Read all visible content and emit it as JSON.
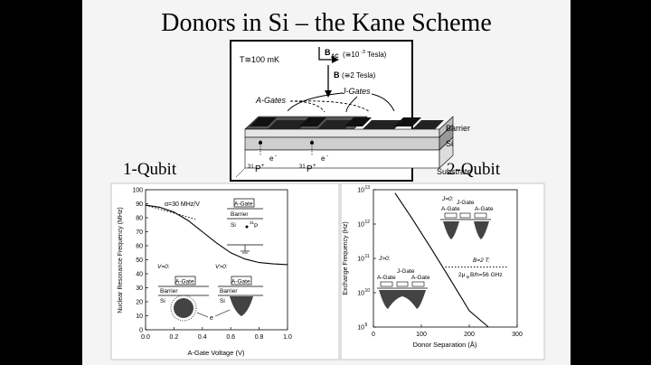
{
  "slide": {
    "title": "Donors in Si – the Kane Scheme",
    "left_label": "1-Qubit",
    "right_label": "2-Qubit"
  },
  "diagram": {
    "temperature": "T≅100 mK",
    "bac_label": "B",
    "bac_sub": "AC",
    "bac_value": "(≅10",
    "bac_exp": "-3",
    "bac_unit": " Tesla)",
    "b_label": "B",
    "b_value": "(≅2 Tesla)",
    "j_gates": "J-Gates",
    "a_gates": "A-Gates",
    "barrier": "Barrier",
    "si": "Si",
    "substrate": "Substrate",
    "electron_1": "e",
    "electron_2": "e",
    "electron_sup": "-",
    "p_1": "P",
    "p_2": "P",
    "p_sup_pre": "31",
    "p_sup_post": "+"
  },
  "chart_left": {
    "type": "line",
    "ylabel": "Nuclear Resonance Frequency (MHz)",
    "xlabel": "A-Gate Voltage (V)",
    "xlim": [
      0.0,
      1.0
    ],
    "ylim": [
      0,
      100
    ],
    "xticks": [
      "0.0",
      "0.2",
      "0.4",
      "0.6",
      "0.8",
      "1.0"
    ],
    "yticks": [
      "0",
      "10",
      "20",
      "30",
      "40",
      "50",
      "60",
      "70",
      "80",
      "90",
      "100"
    ],
    "annotation": "α=30 MHz/V",
    "inset_top": {
      "gate": "A-Gate",
      "barrier": "Barrier",
      "si": "Si",
      "p": "P",
      "p_sup": "31"
    },
    "inset_v0": {
      "label": "V=0:",
      "gate": "A-Gate",
      "barrier": "Barrier",
      "si": "Si"
    },
    "inset_vpos": {
      "label": "V>0:",
      "gate": "A-Gate",
      "barrier": "Barrier",
      "si": "Si"
    },
    "electron": "e"
  },
  "chart_right": {
    "type": "line",
    "ylabel": "Exchange Frequency (Hz)",
    "xlabel": "Donor Separation (Å)",
    "xlim": [
      0,
      300
    ],
    "yticks": [
      {
        "base": "10",
        "exp": "9"
      },
      {
        "base": "10",
        "exp": "10"
      },
      {
        "base": "10",
        "exp": "11"
      },
      {
        "base": "10",
        "exp": "12"
      },
      {
        "base": "10",
        "exp": "13"
      }
    ],
    "xticks": [
      "0",
      "100",
      "200",
      "300"
    ],
    "inset_j0": {
      "label": "J=0:",
      "jgate": "J-Gate",
      "agate1": "A-Gate",
      "agate2": "A-Gate"
    },
    "inset_jpos": {
      "label": "J>0:",
      "jgate": "J-Gate",
      "agate1": "A-Gate",
      "agate2": "A-Gate"
    },
    "b_annotation": "B=2 T:",
    "freq_annotation": "2μ",
    "freq_sub": "B",
    "freq_rest": "B/h=56 GHz"
  },
  "chart_data": [
    {
      "type": "line",
      "title": "1-Qubit",
      "xlabel": "A-Gate Voltage (V)",
      "ylabel": "Nuclear Resonance Frequency (MHz)",
      "xlim": [
        0.0,
        1.0
      ],
      "ylim": [
        0,
        100
      ],
      "series": [
        {
          "x": [
            0.0,
            0.1,
            0.2,
            0.3,
            0.4,
            0.5,
            0.6,
            0.7,
            0.8,
            0.9,
            1.0
          ],
          "y": [
            89,
            87.5,
            84,
            78,
            70,
            62,
            55,
            50.5,
            48,
            47,
            46.5
          ]
        }
      ],
      "dotted_line": {
        "x": [
          0.0,
          0.35
        ],
        "y": [
          89,
          79
        ]
      }
    },
    {
      "type": "line",
      "title": "2-Qubit",
      "xlabel": "Donor Separation (Å)",
      "ylabel": "Exchange Frequency (Hz)",
      "xlim": [
        0,
        300
      ],
      "ylim": [
        1000000000.0,
        10000000000000.0
      ],
      "yscale": "log",
      "series": [
        {
          "x": [
            45,
            80,
            120,
            160,
            200,
            240
          ],
          "y": [
            8000000000000.0,
            1500000000000.0,
            200000000000.0,
            25000000000.0,
            3000000000.0,
            1000000000.0
          ]
        }
      ],
      "reference_level": 56000000000.0
    }
  ]
}
